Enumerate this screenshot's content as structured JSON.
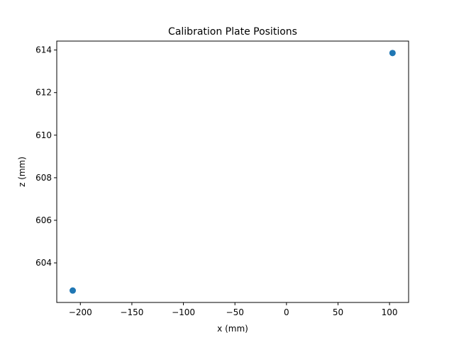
{
  "chart_data": {
    "type": "scatter",
    "title": "Calibration Plate Positions",
    "xlabel": "x (mm)",
    "ylabel": "z (mm)",
    "xlim": [
      -222.9,
      118.5
    ],
    "ylim": [
      602.14,
      614.42
    ],
    "xticks": [
      -200,
      -150,
      -100,
      -50,
      0,
      50,
      100
    ],
    "xtick_labels": [
      "−200",
      "−150",
      "−100",
      "−50",
      "0",
      "50",
      "100"
    ],
    "yticks": [
      604,
      606,
      608,
      610,
      612,
      614
    ],
    "ytick_labels": [
      "604",
      "606",
      "608",
      "610",
      "612",
      "614"
    ],
    "grid": false,
    "series": [
      {
        "color": "#1f77b4",
        "points": [
          {
            "x": -207.4,
            "y": 602.7
          },
          {
            "x": 102.9,
            "y": 613.86
          }
        ]
      }
    ]
  }
}
